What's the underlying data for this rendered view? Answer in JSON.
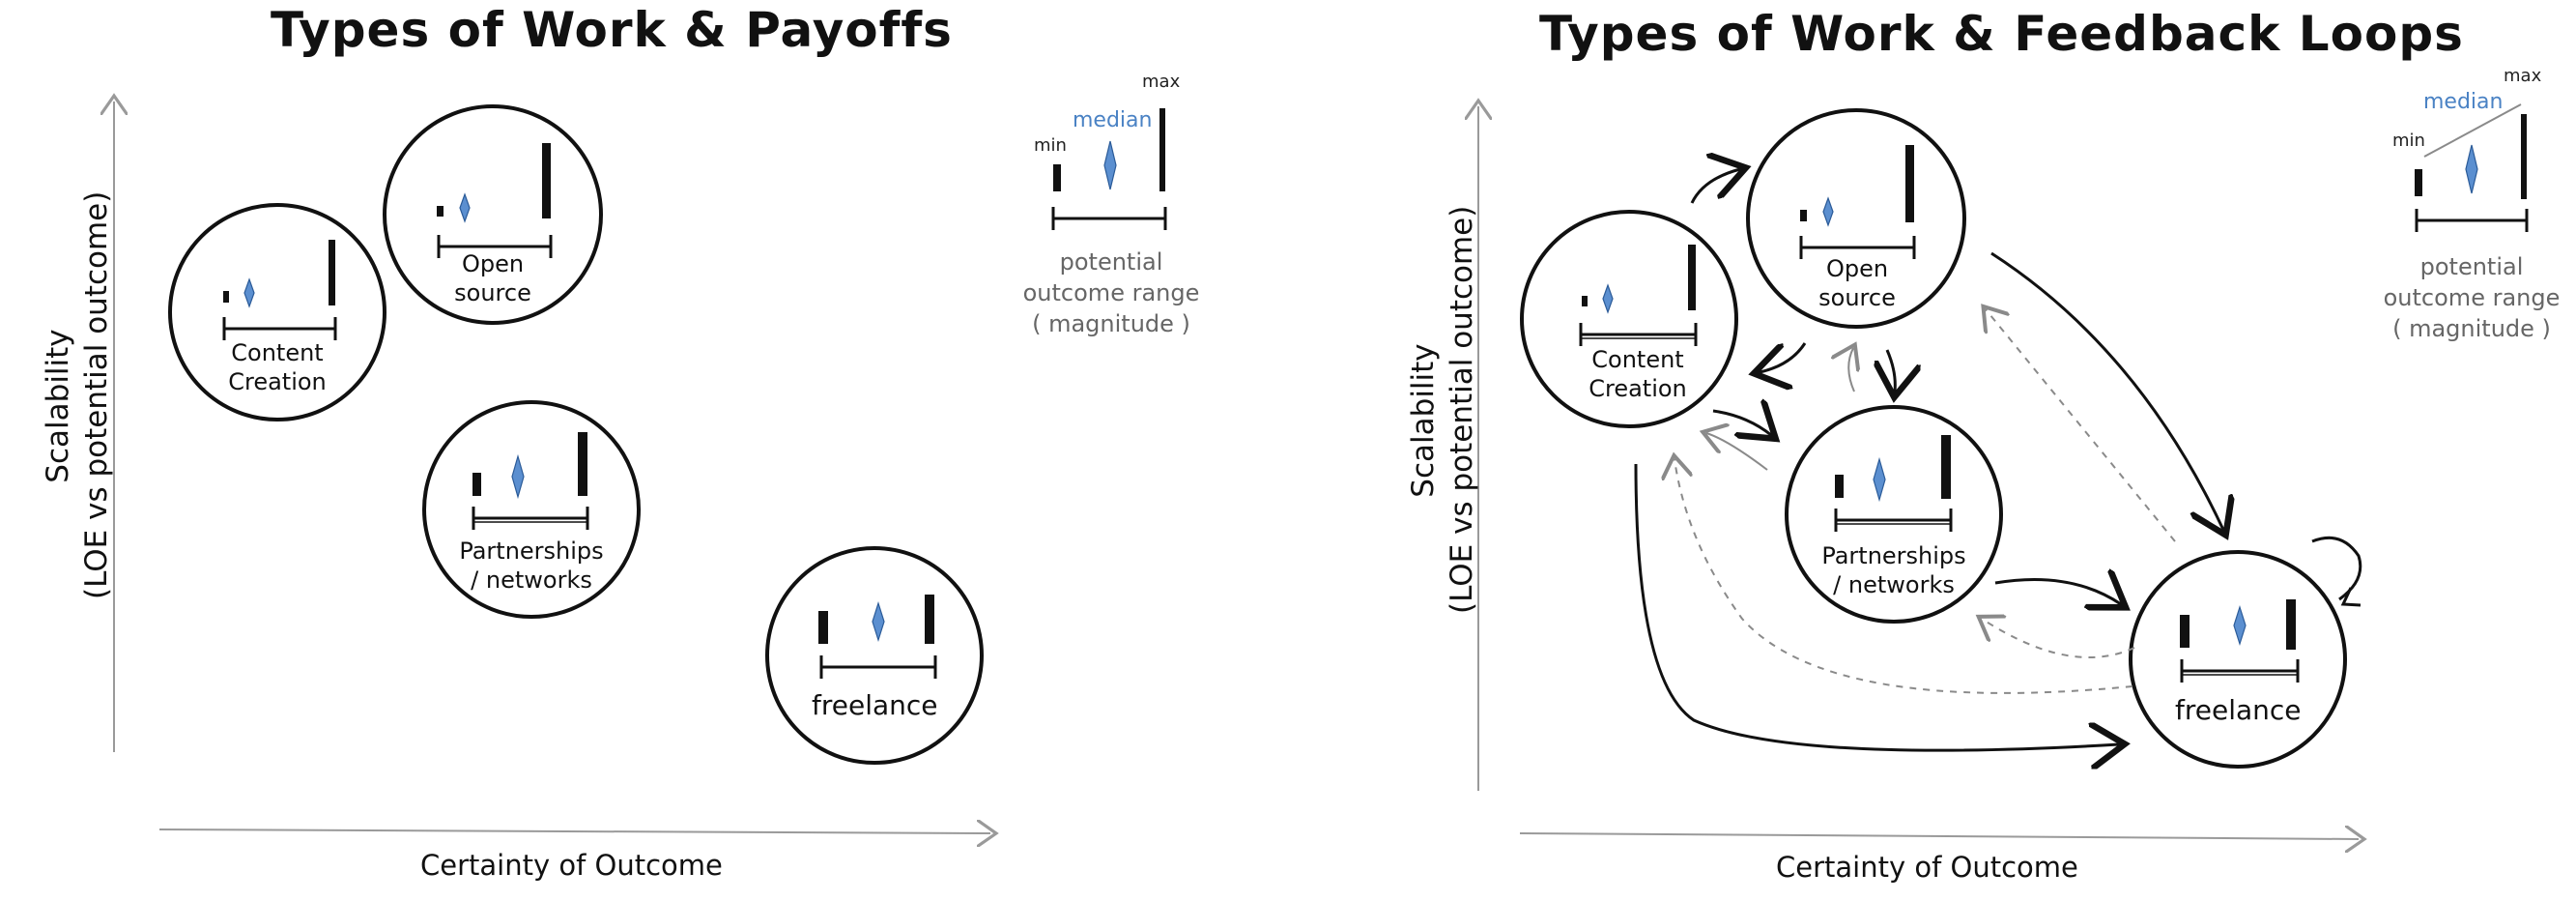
{
  "left": {
    "title": "Types of Work & Payoffs",
    "x_axis_label": "Certainty of Outcome",
    "y_axis_label_line1": "Scalability",
    "y_axis_label_line2": "(LOE vs potential outcome)",
    "nodes": {
      "content_creation": [
        "Content",
        "Creation"
      ],
      "open_source": [
        "Open",
        "source"
      ],
      "partnerships": [
        "Partnerships",
        "/ networks"
      ],
      "freelance": [
        "freelance"
      ]
    },
    "legend": {
      "min": "min",
      "median": "median",
      "max": "max",
      "caption": [
        "potential",
        "outcome range",
        "( magnitude )"
      ]
    }
  },
  "right": {
    "title": "Types of Work & Feedback Loops",
    "x_axis_label": "Certainty of Outcome",
    "y_axis_label_line1": "Scalability",
    "y_axis_label_line2": "(LOE vs potential outcome)",
    "nodes": {
      "content_creation": [
        "Content",
        "Creation"
      ],
      "open_source": [
        "Open",
        "source"
      ],
      "partnerships": [
        "Partnerships",
        "/ networks"
      ],
      "freelance": [
        "freelance"
      ]
    },
    "legend": {
      "min": "min",
      "median": "median",
      "max": "max",
      "caption": [
        "potential",
        "outcome range",
        "( magnitude )"
      ]
    }
  },
  "colors": {
    "ink": "#111111",
    "axis": "#9a9a9a",
    "median_diamond": "#5b8fd0",
    "median_text": "#4a82c4",
    "dashed_arrow": "#8a8a8a",
    "legend_caption": "#666666"
  }
}
